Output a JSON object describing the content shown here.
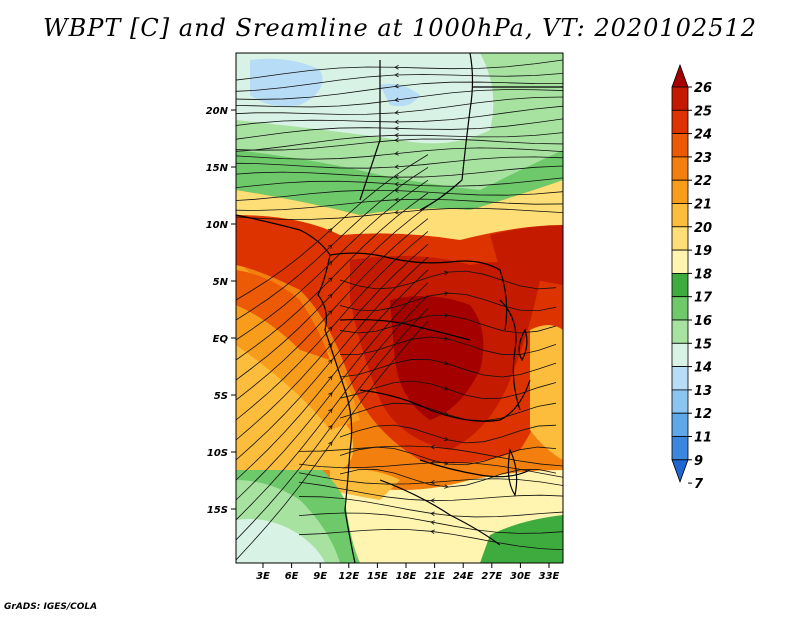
{
  "title": "WBPT [C] and Sreamline at 1000hPa, VT: 2020102512",
  "footer": "GrADS: IGES/COLA",
  "map": {
    "lat_labels": [
      "20N",
      "15N",
      "10N",
      "5N",
      "EQ",
      "5S",
      "10S",
      "15S"
    ],
    "lon_labels": [
      "3E",
      "6E",
      "9E",
      "12E",
      "15E",
      "18E",
      "21E",
      "24E",
      "27E",
      "30E",
      "33E"
    ]
  },
  "colorbar": {
    "labels": [
      "26",
      "25",
      "24",
      "23",
      "22",
      "21",
      "20",
      "19",
      "18",
      "17",
      "16",
      "15",
      "14",
      "13",
      "12",
      "11",
      "9",
      "7"
    ],
    "colors": [
      "#a50000",
      "#c41a00",
      "#dd3300",
      "#ec5a06",
      "#f37f0f",
      "#f89c1b",
      "#fcbd3c",
      "#fedf77",
      "#fff5b0",
      "#3dab3d",
      "#6ec96a",
      "#a7e2a1",
      "#d8f2e5",
      "#b7dcf5",
      "#8bc4ef",
      "#5ea8e8",
      "#3b87df",
      "#1f66d3"
    ]
  }
}
